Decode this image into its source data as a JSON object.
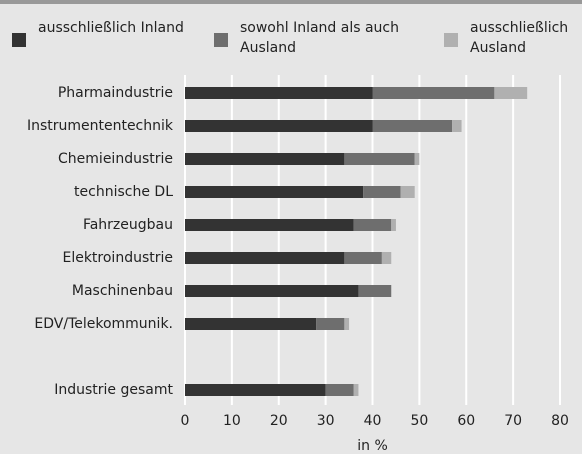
{
  "chart_data": {
    "type": "stacked-bar-horizontal",
    "categories": [
      "Pharmaindustrie",
      "Instrumententechnik",
      "Chemieindustrie",
      "technische DL",
      "Fahrzeugbau",
      "Elektroindustrie",
      "Maschinenbau",
      "EDV/Telekommunik.",
      null,
      "Industrie gesamt"
    ],
    "series": [
      {
        "name": "ausschließlich Inland",
        "color": "#333333",
        "values": [
          40,
          40,
          34,
          38,
          36,
          34,
          37,
          28,
          null,
          30
        ]
      },
      {
        "name": "sowohl Inland als auch Ausland",
        "color": "#6e6e6e",
        "values": [
          26,
          17,
          15,
          8,
          8,
          8,
          7,
          6,
          null,
          6
        ]
      },
      {
        "name": "ausschließlich Ausland",
        "color": "#b0b0b0",
        "values": [
          7,
          2,
          1,
          3,
          1,
          2,
          0,
          1,
          null,
          1
        ]
      }
    ],
    "xlabel": "in %",
    "xlim": [
      0,
      80
    ],
    "xticks": [
      0,
      10,
      20,
      30,
      40,
      50,
      60,
      70,
      80
    ],
    "grid": true,
    "legend": "top"
  }
}
